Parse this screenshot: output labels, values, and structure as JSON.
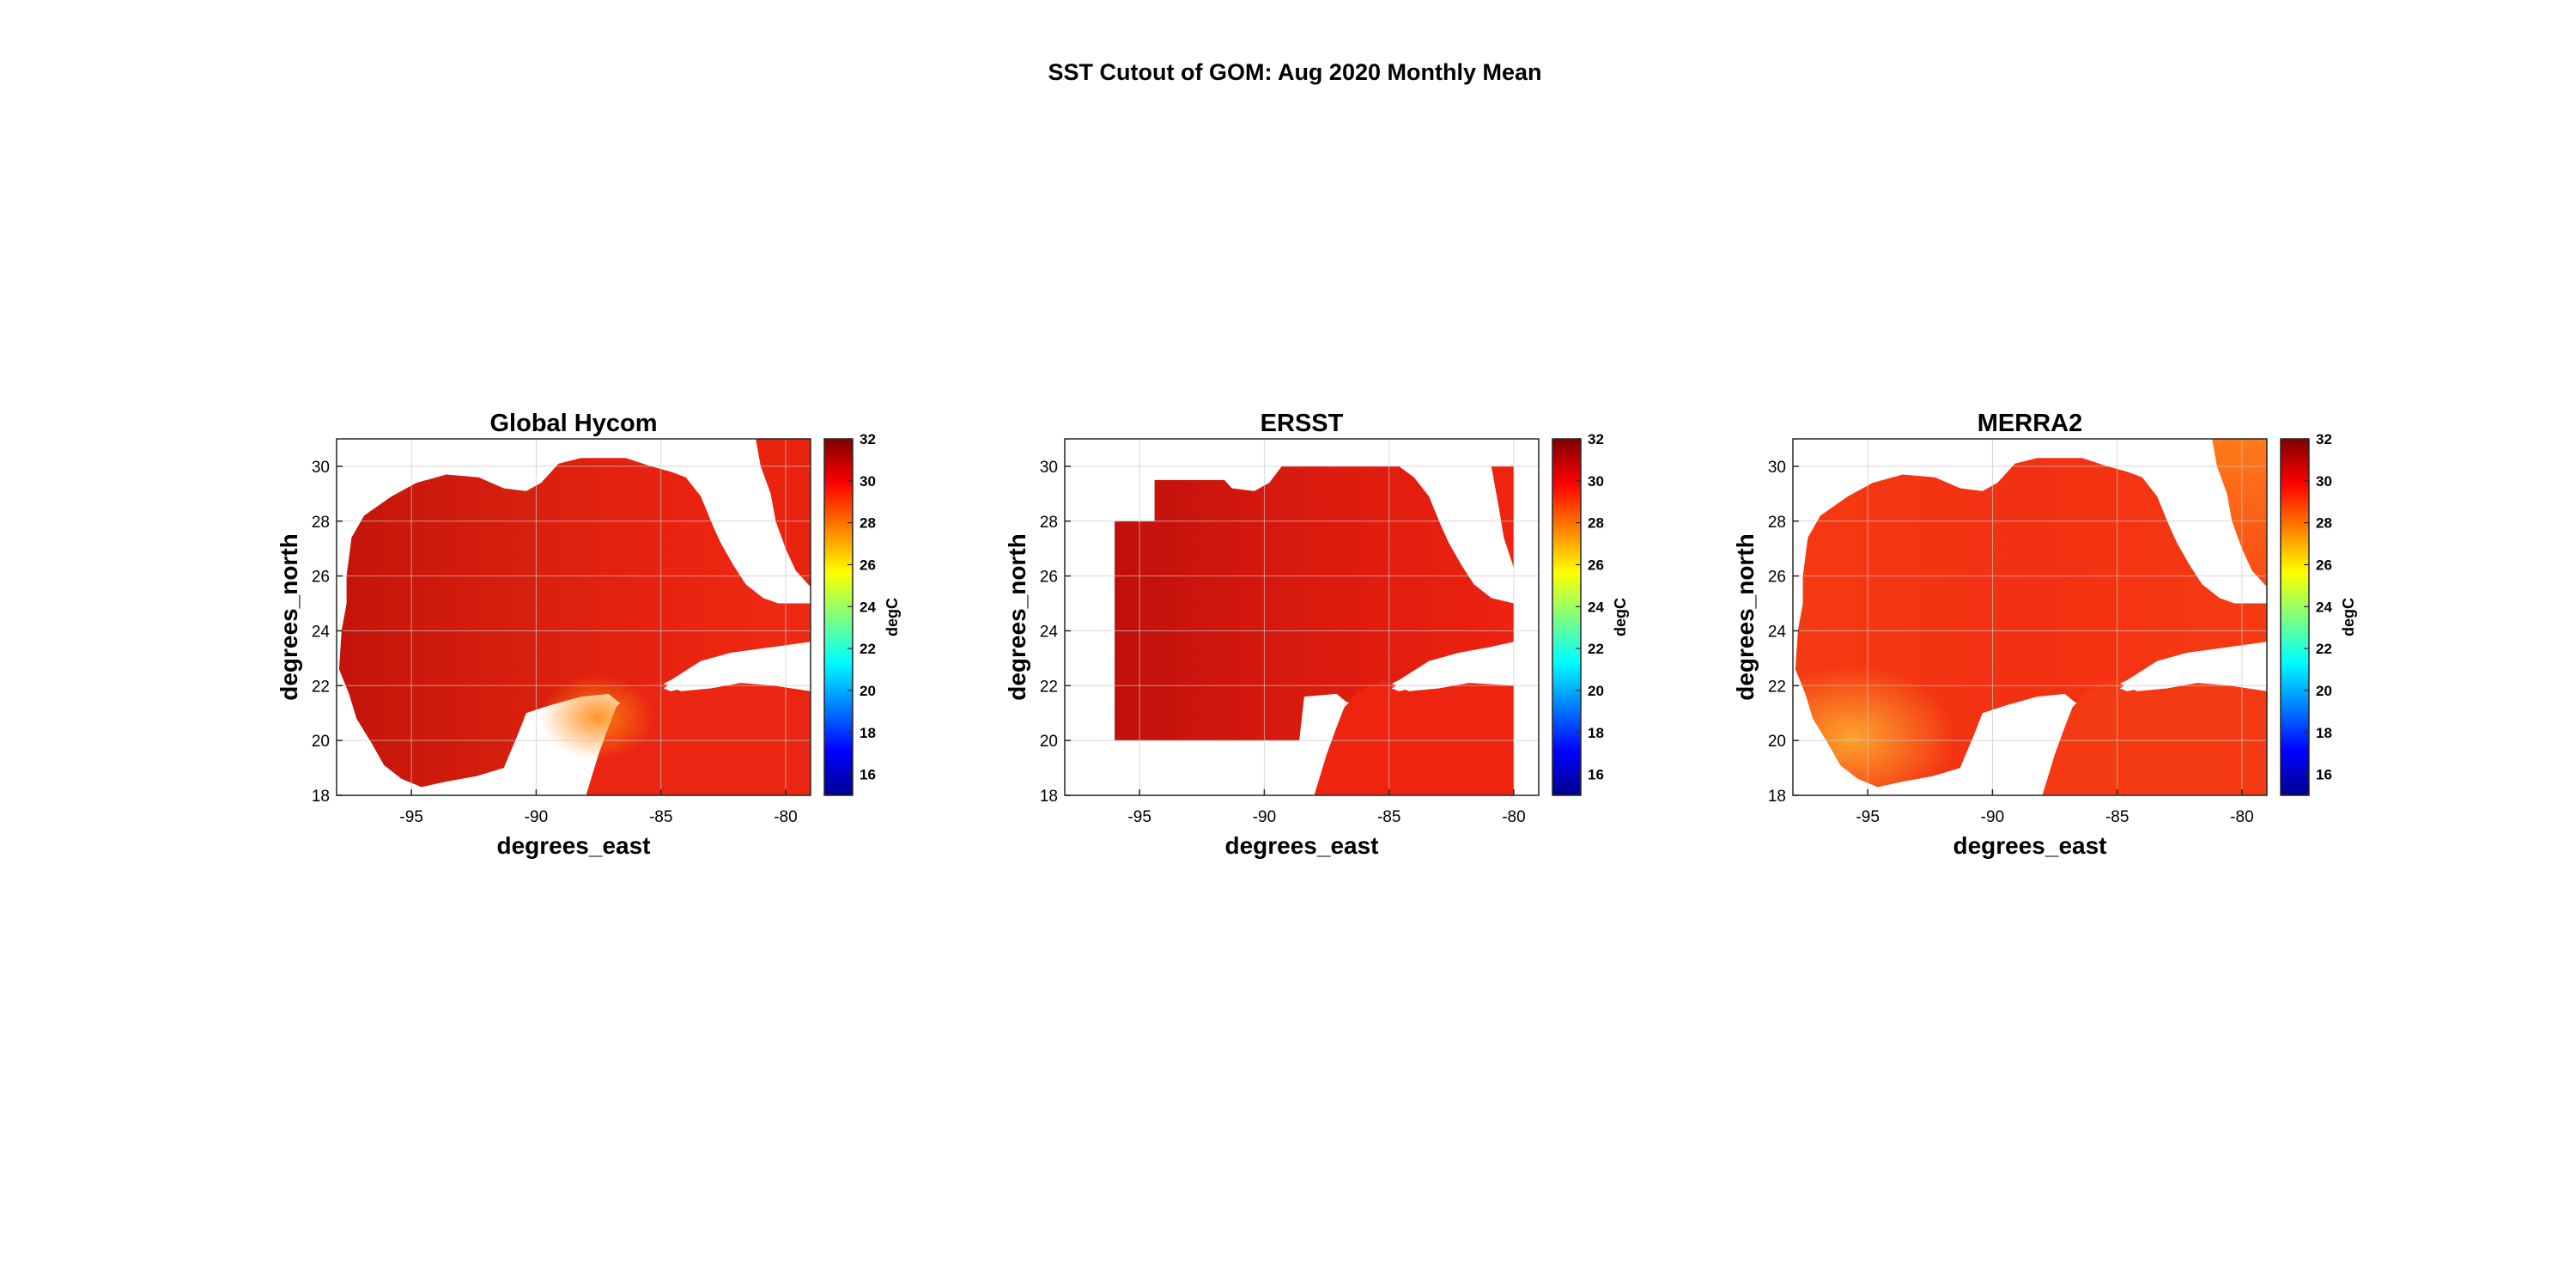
{
  "figure": {
    "title": "SST Cutout of GOM: Aug 2020 Monthly Mean"
  },
  "chart_data": [
    {
      "type": "heatmap",
      "title": "Global Hycom",
      "xlabel": "degrees_east",
      "ylabel": "degrees_north",
      "xlim": [
        -98,
        -79
      ],
      "ylim": [
        18,
        31
      ],
      "xticks": [
        "-95",
        "-90",
        "-85",
        "-80"
      ],
      "yticks": [
        "18",
        "20",
        "22",
        "24",
        "26",
        "28",
        "30"
      ],
      "colorbar": {
        "label": "degC",
        "colormap": "jet",
        "range": [
          15,
          32
        ],
        "ticks": [
          "16",
          "18",
          "20",
          "22",
          "24",
          "26",
          "28",
          "30",
          "32"
        ]
      },
      "grid": true,
      "field_summary": {
        "typical_value": 30.3,
        "open_gulf_west": 31.0,
        "coastal_min": 28.5
      }
    },
    {
      "type": "heatmap",
      "title": "ERSST",
      "xlabel": "degrees_east",
      "ylabel": "degrees_north",
      "xlim": [
        -98,
        -79
      ],
      "ylim": [
        18,
        31
      ],
      "xticks": [
        "-95",
        "-90",
        "-85",
        "-80"
      ],
      "yticks": [
        "18",
        "20",
        "22",
        "24",
        "26",
        "28",
        "30"
      ],
      "colorbar": {
        "label": "degC",
        "colormap": "jet",
        "range": [
          15,
          32
        ],
        "ticks": [
          "16",
          "18",
          "20",
          "22",
          "24",
          "26",
          "28",
          "30",
          "32"
        ]
      },
      "grid": true,
      "field_summary": {
        "typical_value": 30.5,
        "west_value": 31.2,
        "east_value": 30.4
      }
    },
    {
      "type": "heatmap",
      "title": "MERRA2",
      "xlabel": "degrees_east",
      "ylabel": "degrees_north",
      "xlim": [
        -98,
        -79
      ],
      "ylim": [
        18,
        31
      ],
      "xticks": [
        "-95",
        "-90",
        "-85",
        "-80"
      ],
      "yticks": [
        "18",
        "20",
        "22",
        "24",
        "26",
        "28",
        "30"
      ],
      "colorbar": {
        "label": "degC",
        "colormap": "jet",
        "range": [
          15,
          32
        ],
        "ticks": [
          "16",
          "18",
          "20",
          "22",
          "24",
          "26",
          "28",
          "30",
          "32"
        ]
      },
      "grid": true,
      "field_summary": {
        "typical_value": 30.0,
        "coastal_min": 28.6
      }
    }
  ]
}
